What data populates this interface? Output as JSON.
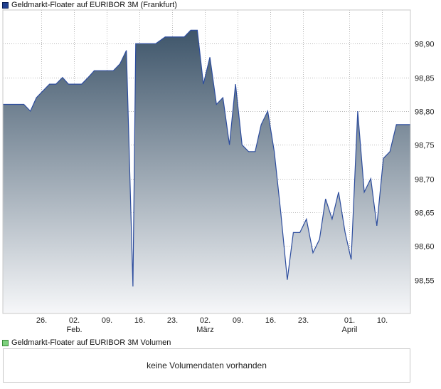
{
  "legend": {
    "price_label": "Geldmarkt-Floater auf EURIBOR 3M (Frankfurt)",
    "volume_label": "Geldmarkt-Floater auf EURIBOR 3M Volumen",
    "price_color": "#1f3f8f",
    "volume_color": "#7dd17d"
  },
  "volume": {
    "message": "keine Volumendaten vorhanden"
  },
  "chart_data": {
    "type": "area",
    "title": "",
    "xlabel": "",
    "ylabel": "",
    "ylim": [
      98.5,
      98.95
    ],
    "y_ticks": [
      "98,55",
      "98,60",
      "98,65",
      "98,70",
      "98,75",
      "98,80",
      "98,85",
      "98,90"
    ],
    "y_tick_values": [
      98.55,
      98.6,
      98.65,
      98.7,
      98.75,
      98.8,
      98.85,
      98.9
    ],
    "x_ticks": [
      {
        "day": 7,
        "label": "26.",
        "month": ""
      },
      {
        "day": 14,
        "label": "02.",
        "month": "Feb."
      },
      {
        "day": 21,
        "label": "09.",
        "month": ""
      },
      {
        "day": 28,
        "label": "16.",
        "month": ""
      },
      {
        "day": 35,
        "label": "23.",
        "month": ""
      },
      {
        "day": 42,
        "label": "02.",
        "month": "März"
      },
      {
        "day": 49,
        "label": "09.",
        "month": ""
      },
      {
        "day": 56,
        "label": "16.",
        "month": ""
      },
      {
        "day": 63,
        "label": "23.",
        "month": ""
      },
      {
        "day": 73,
        "label": "01.",
        "month": "April"
      },
      {
        "day": 80,
        "label": "10.",
        "month": ""
      }
    ],
    "x_range": [
      -1.3,
      86.1
    ],
    "grid": true,
    "line_color": "#2d4d9e",
    "fill_top_color": "#3e556a",
    "fill_bottom_color": "#f6f7f9",
    "series": [
      {
        "days": [
          -1.3,
          3.2,
          4.6,
          5.9,
          7.3,
          8.7,
          10.1,
          11.5,
          12.8,
          14.2,
          15.6,
          17.0,
          18.3,
          19.7,
          21.1,
          22.4,
          23.8,
          25.2,
          26.6,
          27.2,
          28.6,
          29.4,
          31.5,
          33.5,
          34.9,
          36.2,
          37.6,
          39.0,
          40.4,
          41.7,
          43.1,
          44.5,
          45.9,
          47.3,
          48.6,
          50.0,
          51.4,
          52.8,
          54.1,
          55.5,
          56.9,
          58.3,
          59.7,
          61.0,
          62.4,
          63.8,
          65.2,
          66.6,
          67.9,
          69.3,
          70.7,
          72.1,
          73.4,
          74.8,
          76.2,
          77.6,
          78.9,
          80.3,
          81.7,
          83.1,
          84.5,
          85.8,
          86.1
        ],
        "values": [
          98.81,
          98.81,
          98.8,
          98.82,
          98.83,
          98.84,
          98.84,
          98.85,
          98.84,
          98.84,
          98.84,
          98.85,
          98.86,
          98.86,
          98.86,
          98.86,
          98.87,
          98.89,
          98.54,
          98.9,
          98.9,
          98.9,
          98.9,
          98.91,
          98.91,
          98.91,
          98.91,
          98.92,
          98.92,
          98.84,
          98.88,
          98.81,
          98.82,
          98.75,
          98.84,
          98.75,
          98.74,
          98.74,
          98.78,
          98.8,
          98.74,
          98.65,
          98.55,
          98.62,
          98.62,
          98.64,
          98.59,
          98.61,
          98.67,
          98.64,
          98.68,
          98.62,
          98.58,
          98.8,
          98.68,
          98.7,
          98.63,
          98.73,
          98.74,
          98.78,
          98.78,
          98.78,
          98.78
        ]
      }
    ]
  }
}
